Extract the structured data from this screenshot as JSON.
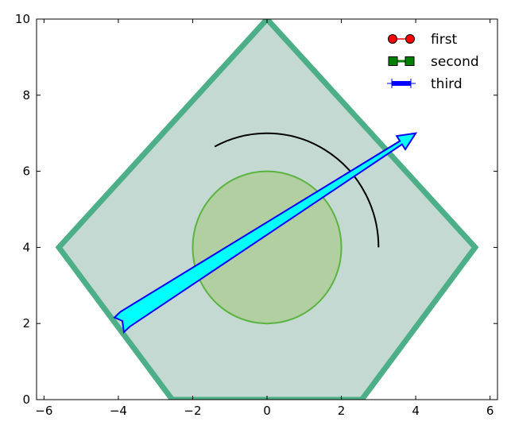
{
  "chart_data": {
    "type": "scatter",
    "title": "",
    "xlabel": "",
    "ylabel": "",
    "xlim": [
      -6.2,
      6.2
    ],
    "ylim": [
      0,
      10
    ],
    "grid": false,
    "x_ticks": [
      -6,
      -4,
      -2,
      0,
      2,
      4,
      6
    ],
    "y_ticks": [
      0,
      2,
      4,
      6,
      8,
      10
    ],
    "x_tick_labels": [
      "−6",
      "−4",
      "−2",
      "0",
      "2",
      "4",
      "6"
    ],
    "y_tick_labels": [
      "0",
      "2",
      "4",
      "6",
      "8",
      "10"
    ],
    "shapes": {
      "pentagon": {
        "vertices": [
          [
            0,
            10
          ],
          [
            5.6,
            4
          ],
          [
            2.55,
            0
          ],
          [
            -2.55,
            0
          ],
          [
            -5.6,
            4
          ]
        ],
        "fill": "#c3d9d2",
        "edge": "#4daf88"
      },
      "circle": {
        "center": [
          0,
          4
        ],
        "radius": 2,
        "fill": "#b2cfa1",
        "edge": "#5ab43f"
      },
      "arc": {
        "center": [
          0,
          4
        ],
        "radius": 3,
        "theta_start_deg": 0,
        "theta_end_deg": 118,
        "color": "#000000"
      },
      "arrow": {
        "start": [
          -4.0,
          2.0
        ],
        "end": [
          4.0,
          7.0
        ],
        "fill": "#00ffff",
        "edge": "#0000ff"
      }
    },
    "legend": {
      "placement": "top-right",
      "entries": [
        {
          "label": "first",
          "marker": "circle",
          "color": "#ff0000"
        },
        {
          "label": "second",
          "marker": "square",
          "color": "#008000"
        },
        {
          "label": "third",
          "marker": "bar",
          "color": "#0000ff"
        }
      ]
    }
  }
}
